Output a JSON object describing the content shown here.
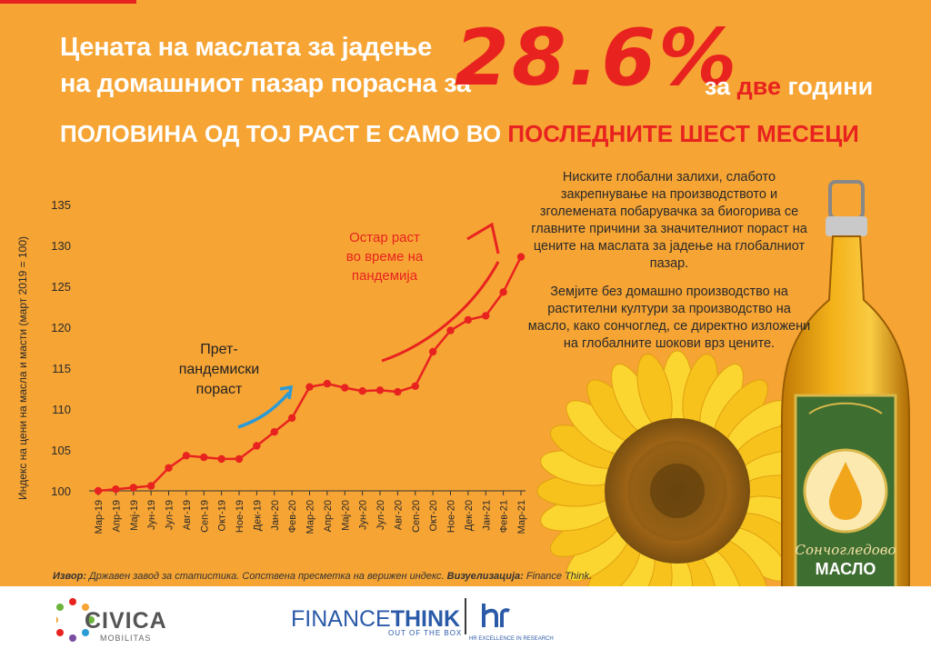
{
  "headline": {
    "line1": "Цената на маслата за јадење",
    "line2": "на домашниот пазар порасна за",
    "big_value": "28.6%",
    "line3_a": "за ",
    "line3_red": "две",
    "line3_b": " години",
    "sub_a": "ПОЛОВИНА ОД ТОЈ РАСТ Е САМО ВО ",
    "sub_red": "ПОСЛЕДНИТЕ ШЕСТ МЕСЕЦИ"
  },
  "note": {
    "p1": "Ниските глобални залихи, слабото закрепнување на производството и зголемената побарувачка за биогорива се главните причини за значителниот пораст на цените на маслата за јадење на глобалниот пазар.",
    "p2": "Земјите без домашно производство на растителни култури за производство на масло, како сончоглед, се директно изложени на глобалните шокови врз цените."
  },
  "source": {
    "prefix": "Извор:",
    "text": " Државен завод за статистика. Сопствена пресметка на верижен индекс. ",
    "viz_prefix": "Визуелизација:",
    "viz_text": " Finance Think."
  },
  "bottle": {
    "line1": "Сончогледово",
    "line2": "МАСЛО"
  },
  "footer": {
    "civica": "CIVICA",
    "civica_sub": "MOBILITAS",
    "ft_a": "FINANCE",
    "ft_b": "THINK",
    "ft_sub": "OUT OF THE BOX",
    "hr_sub": "HR EXCELLENCE IN RESEARCH"
  },
  "colors": {
    "background": "#f6a434",
    "accent_red": "#e8231f",
    "line": "#e8231f",
    "arrow_blue": "#2a9bd6",
    "white": "#ffffff"
  },
  "chart_data": {
    "type": "line",
    "ylabel": "Индекс на цени на масла и масти (март 2019 = 100)",
    "xlabel": "",
    "ylim": [
      100,
      135
    ],
    "yticks": [
      100,
      105,
      110,
      115,
      120,
      125,
      130,
      135
    ],
    "grid": false,
    "categories": [
      "Мар-19",
      "Апр-19",
      "Мај-19",
      "Јун-19",
      "Јул-19",
      "Авг-19",
      "Сеп-19",
      "Окт-19",
      "Ное-19",
      "Дек-19",
      "Јан-20",
      "Фев-20",
      "Мар-20",
      "Апр-20",
      "Мај-20",
      "Јун-20",
      "Јул-20",
      "Авг-20",
      "Сеп-20",
      "Окт-20",
      "Ное-20",
      "Дек-20",
      "Јан-21",
      "Фев-21",
      "Мар-21"
    ],
    "series": [
      {
        "values": [
          100.0,
          100.2,
          100.4,
          100.6,
          102.8,
          104.3,
          104.1,
          103.9,
          103.9,
          105.5,
          107.2,
          108.9,
          112.7,
          113.1,
          112.6,
          112.2,
          112.3,
          112.1,
          112.8,
          117.0,
          119.6,
          120.9,
          121.4,
          124.3,
          128.6
        ]
      }
    ],
    "annotations": [
      {
        "text_lines": [
          "Прет-",
          "пандемиски",
          "пораст"
        ],
        "color": "#222222"
      },
      {
        "text_lines": [
          "Остар раст",
          "во време на",
          "пандемија"
        ],
        "color": "#e8231f"
      }
    ]
  }
}
